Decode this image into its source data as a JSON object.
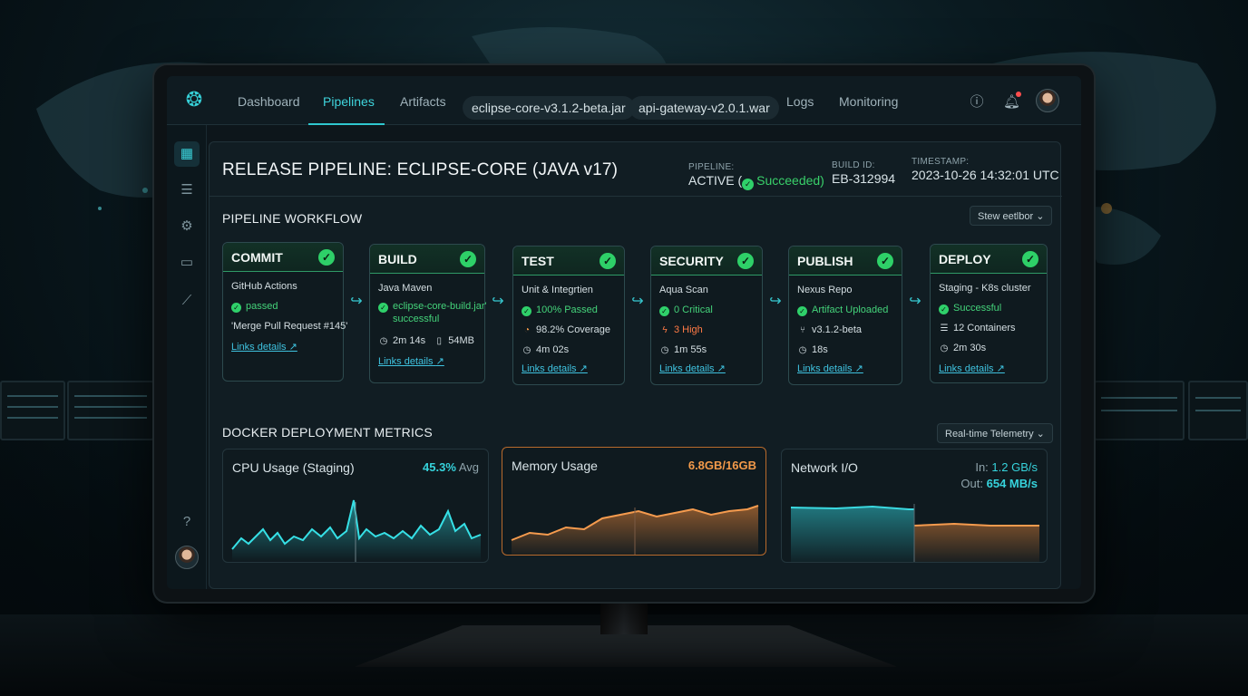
{
  "topnav": {
    "tabs": [
      "Dashboard",
      "Pipelines",
      "Artifacts",
      "Logs",
      "Monitoring"
    ],
    "active_tab": "Pipelines",
    "file_chips": [
      "eclipse-core-v3.1.2-beta.jar",
      "api-gateway-v2.0.1.war"
    ],
    "icons": [
      "help-circle-icon",
      "bell-icon",
      "user-avatar"
    ]
  },
  "sidebar": {
    "icons": [
      "grid-icon",
      "sliders-icon",
      "gear-icon",
      "calendar-icon",
      "chart-icon",
      "help-icon",
      "user-avatar"
    ]
  },
  "header": {
    "title": "RELEASE PIPELINE: ECLIPSE-CORE (JAVA v17)",
    "pipeline_label": "PIPELINE:",
    "pipeline_status": "ACTIVE (",
    "pipeline_result": "Succeeded)",
    "build_label": "BUILD ID:",
    "build_id": "EB-312994",
    "timestamp_label": "TIMESTAMP:",
    "timestamp": "2023-10-26 14:32:01 UTC"
  },
  "workflow": {
    "title": "PIPELINE WORKFLOW",
    "dropdown": "Stew eetlbor",
    "stages": [
      {
        "name": "COMMIT",
        "tool": "GitHub Actions",
        "status": "passed",
        "line3": "'Merge Pull Request #145'",
        "link": "Links details"
      },
      {
        "name": "BUILD",
        "tool": "Java Maven",
        "status": "eclipse-core-build.jar'",
        "status2": "successful",
        "time": "2m 14s",
        "size": "54MB",
        "link": "Links details"
      },
      {
        "name": "TEST",
        "tool": "Unit & Integrtien",
        "status": "100% Passed",
        "coverage": "98.2% Coverage",
        "time": "4m 02s",
        "link": "Links details"
      },
      {
        "name": "SECURITY",
        "tool": "Aqua Scan",
        "status": "0 Critical",
        "warning": "3 High",
        "time": "1m 55s",
        "link": "Links details"
      },
      {
        "name": "PUBLISH",
        "tool": "Nexus Repo",
        "status": "Artifact Uploaded",
        "version": "v3.1.2-beta",
        "time": "18s",
        "link": "Links details"
      },
      {
        "name": "DEPLOY",
        "tool": "Staging - K8s cluster",
        "status": "Successful",
        "containers": "12 Containers",
        "time": "2m 30s",
        "link": "Links details"
      }
    ]
  },
  "metrics": {
    "title": "DOCKER DEPLOYMENT METRICS",
    "dropdown": "Real-time Telemetry",
    "cpu": {
      "title": "CPU Usage (Staging)",
      "value": "45.3%",
      "suffix": "Avg"
    },
    "memory": {
      "title": "Memory Usage",
      "value": "6.8GB/16GB"
    },
    "network": {
      "title": "Network I/O",
      "in_label": "In:",
      "in_value": "1.2 GB/s",
      "out_label": "Out:",
      "out_value": "654 MB/s"
    }
  },
  "colors": {
    "accent": "#36d1d8",
    "success": "#2fd06a",
    "warning": "#ff7a45",
    "memory": "#f39a4a"
  }
}
